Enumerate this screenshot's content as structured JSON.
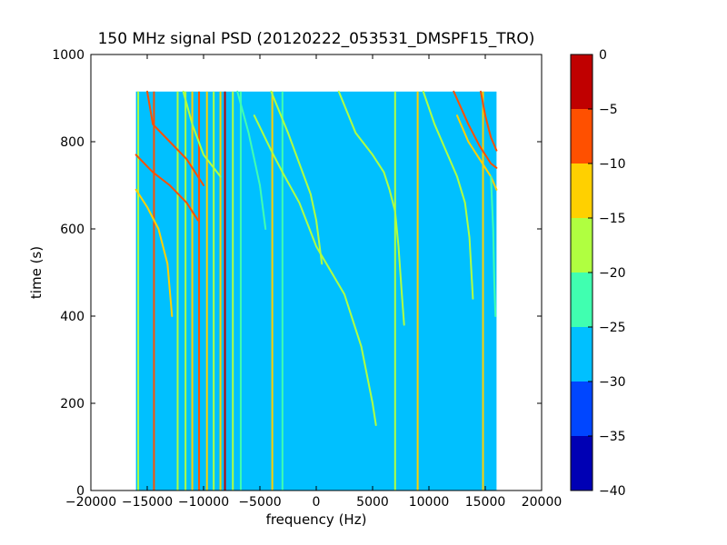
{
  "chart_data": {
    "type": "heatmap",
    "title": "150 MHz signal PSD (20120222_053531_DMSPF15_TRO)",
    "xlabel": "frequency (Hz)",
    "ylabel": "time (s)",
    "xlim": [
      -20000,
      20000
    ],
    "ylim": [
      0,
      1000
    ],
    "xticks": [
      -20000,
      -15000,
      -10000,
      -5000,
      0,
      5000,
      10000,
      15000,
      20000
    ],
    "yticks": [
      0,
      200,
      400,
      600,
      800,
      1000
    ],
    "data_extent": {
      "freq_min": -16000,
      "freq_max": 16000,
      "time_min": 0,
      "time_max": 915
    },
    "background_level": -28,
    "colorbar": {
      "levels": [
        -40,
        -35,
        -30,
        -25,
        -20,
        -15,
        -10,
        -5,
        0
      ],
      "tick_labels": [
        "0",
        "−5",
        "−10",
        "−15",
        "−20",
        "−25",
        "−30",
        "−35",
        "−40"
      ],
      "tick_values": [
        0,
        -5,
        -10,
        -15,
        -20,
        -25,
        -30,
        -35,
        -40
      ],
      "colors": [
        "#0000b4",
        "#0046ff",
        "#00c0ff",
        "#40ffb0",
        "#b0ff40",
        "#ffd000",
        "#ff5000",
        "#c00000"
      ]
    },
    "vertical_lines": [
      {
        "freq": -15800,
        "level": -17
      },
      {
        "freq": -14400,
        "level": -8
      },
      {
        "freq": -12300,
        "level": -17
      },
      {
        "freq": -11600,
        "level": -17
      },
      {
        "freq": -11000,
        "level": -12
      },
      {
        "freq": -10400,
        "level": -8
      },
      {
        "freq": -9700,
        "level": -12
      },
      {
        "freq": -9100,
        "level": -17
      },
      {
        "freq": -8500,
        "level": -12
      },
      {
        "freq": -8100,
        "level": -3
      },
      {
        "freq": -7400,
        "level": -17
      },
      {
        "freq": -6700,
        "level": -22
      },
      {
        "freq": -3900,
        "level": -12
      },
      {
        "freq": -3000,
        "level": -22
      },
      {
        "freq": 7000,
        "level": -17
      },
      {
        "freq": 9000,
        "level": -12
      },
      {
        "freq": 14800,
        "level": -12
      }
    ],
    "sweeps": [
      {
        "level": -8,
        "points": [
          [
            -16000,
            770
          ],
          [
            -14500,
            730
          ],
          [
            -13000,
            700
          ],
          [
            -11500,
            660
          ],
          [
            -10500,
            620
          ]
        ]
      },
      {
        "level": -8,
        "points": [
          [
            -15000,
            915
          ],
          [
            -14500,
            840
          ],
          [
            -13000,
            800
          ],
          [
            -11500,
            760
          ],
          [
            -10000,
            700
          ]
        ]
      },
      {
        "level": -12,
        "points": [
          [
            -16000,
            690
          ],
          [
            -15000,
            650
          ],
          [
            -14000,
            600
          ],
          [
            -13200,
            520
          ],
          [
            -12800,
            400
          ]
        ]
      },
      {
        "level": -17,
        "points": [
          [
            -11800,
            915
          ],
          [
            -11000,
            840
          ],
          [
            -10000,
            770
          ],
          [
            -8500,
            720
          ]
        ]
      },
      {
        "level": -17,
        "points": [
          [
            -5500,
            860
          ],
          [
            -4000,
            780
          ],
          [
            -3000,
            730
          ],
          [
            -1500,
            660
          ],
          [
            0,
            560
          ],
          [
            2500,
            450
          ],
          [
            4000,
            330
          ],
          [
            5000,
            200
          ],
          [
            5300,
            150
          ]
        ]
      },
      {
        "level": -17,
        "points": [
          [
            -4000,
            915
          ],
          [
            -2500,
            820
          ],
          [
            -1500,
            750
          ],
          [
            -500,
            680
          ],
          [
            0,
            620
          ],
          [
            500,
            520
          ]
        ]
      },
      {
        "level": -17,
        "points": [
          [
            2000,
            915
          ],
          [
            3500,
            820
          ],
          [
            5000,
            770
          ],
          [
            6000,
            730
          ],
          [
            6500,
            690
          ],
          [
            7000,
            640
          ],
          [
            7300,
            560
          ],
          [
            7600,
            450
          ],
          [
            7800,
            380
          ]
        ]
      },
      {
        "level": -22,
        "points": [
          [
            -7000,
            915
          ],
          [
            -6000,
            820
          ],
          [
            -5000,
            700
          ],
          [
            -4500,
            600
          ]
        ]
      },
      {
        "level": -17,
        "points": [
          [
            9500,
            915
          ],
          [
            10500,
            840
          ],
          [
            11500,
            780
          ],
          [
            12500,
            720
          ],
          [
            13200,
            660
          ],
          [
            13600,
            580
          ],
          [
            13900,
            440
          ]
        ]
      },
      {
        "level": -8,
        "points": [
          [
            12200,
            915
          ],
          [
            13500,
            840
          ],
          [
            14500,
            790
          ],
          [
            15500,
            750
          ],
          [
            16000,
            740
          ]
        ]
      },
      {
        "level": -8,
        "points": [
          [
            14600,
            915
          ],
          [
            15000,
            860
          ],
          [
            15500,
            810
          ],
          [
            16000,
            780
          ]
        ]
      },
      {
        "level": -12,
        "points": [
          [
            12500,
            860
          ],
          [
            13500,
            800
          ],
          [
            14500,
            760
          ],
          [
            15500,
            720
          ],
          [
            16000,
            690
          ]
        ]
      },
      {
        "level": -22,
        "points": [
          [
            15500,
            720
          ],
          [
            15700,
            600
          ],
          [
            15800,
            480
          ],
          [
            15900,
            400
          ]
        ]
      }
    ]
  }
}
